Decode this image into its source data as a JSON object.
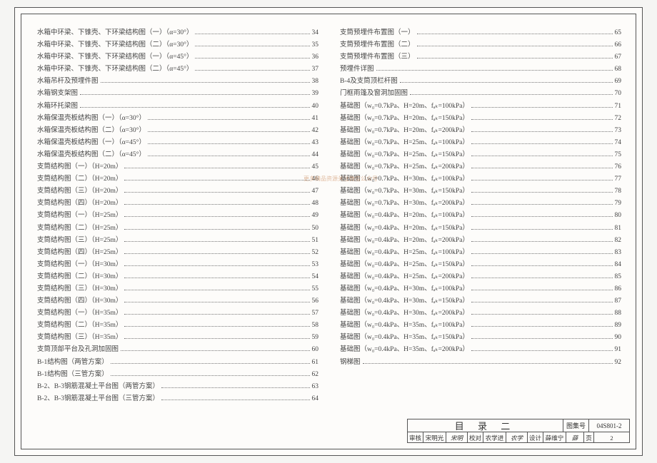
{
  "title_block": {
    "title": "目 录 二",
    "set_label": "图集号",
    "set_no": "04S801-2",
    "審核l": "审核",
    "審核n": "宋明光",
    "校对l": "校对",
    "校对n": "农学进",
    "设计l": "设计",
    "设计n": "薛维宁",
    "页l": "页",
    "页n": "2"
  },
  "left": [
    {
      "t": "水箱中环梁、下锥壳、下环梁结构图（一）（α=30°）",
      "p": "34"
    },
    {
      "t": "水箱中环梁、下锥壳、下环梁结构图（二）（α=30°）",
      "p": "35"
    },
    {
      "t": "水箱中环梁、下锥壳、下环梁结构图（一）（α=45°）",
      "p": "36"
    },
    {
      "t": "水箱中环梁、下锥壳、下环梁结构图（二）（α=45°）",
      "p": "37"
    },
    {
      "t": "水箱吊杆及预埋件图",
      "p": "38"
    },
    {
      "t": "水箱钢支架图",
      "p": "39"
    },
    {
      "t": "水箱环托梁图",
      "p": "40"
    },
    {
      "t": "水箱保温壳板结构图（一）（α=30°）",
      "p": "41"
    },
    {
      "t": "水箱保温壳板结构图（二）（α=30°）",
      "p": "42"
    },
    {
      "t": "水箱保温壳板结构图（一）（α=45°）",
      "p": "43"
    },
    {
      "t": "水箱保温壳板结构图（二）（α=45°）",
      "p": "44"
    },
    {
      "t": "支筒结构图（一）（H=20m）",
      "p": "45"
    },
    {
      "t": "支筒结构图（二）（H=20m）",
      "p": "46"
    },
    {
      "t": "支筒结构图（三）（H=20m）",
      "p": "47"
    },
    {
      "t": "支筒结构图（四）（H=20m）",
      "p": "48"
    },
    {
      "t": "支筒结构图（一）（H=25m）",
      "p": "49"
    },
    {
      "t": "支筒结构图（二）（H=25m）",
      "p": "50"
    },
    {
      "t": "支筒结构图（三）（H=25m）",
      "p": "51"
    },
    {
      "t": "支筒结构图（四）（H=25m）",
      "p": "52"
    },
    {
      "t": "支筒结构图（一）（H=30m）",
      "p": "53"
    },
    {
      "t": "支筒结构图（二）（H=30m）",
      "p": "54"
    },
    {
      "t": "支筒结构图（三）（H=30m）",
      "p": "55"
    },
    {
      "t": "支筒结构图（四）（H=30m）",
      "p": "56"
    },
    {
      "t": "支筒结构图（一）（H=35m）",
      "p": "57"
    },
    {
      "t": "支筒结构图（二）（H=35m）",
      "p": "58"
    },
    {
      "t": "支筒结构图（三）（H=35m）",
      "p": "59"
    },
    {
      "t": "支筒顶部平台及孔洞加固图",
      "p": "60"
    },
    {
      "t": "B-1结构图（两管方案）",
      "p": "61"
    },
    {
      "t": "B-1结构图（三管方案）",
      "p": "62"
    },
    {
      "t": "B-2、B-3钢筋混凝土平台图（两管方案）",
      "p": "63"
    },
    {
      "t": "B-2、B-3钢筋混凝土平台图（三管方案）",
      "p": "64"
    }
  ],
  "right": [
    {
      "t": "支筒预埋件布置图（一）",
      "p": "65"
    },
    {
      "t": "支筒预埋件布置图（二）",
      "p": "66"
    },
    {
      "t": "支筒预埋件布置图（三）",
      "p": "67"
    },
    {
      "t": "预埋件详图",
      "p": "68"
    },
    {
      "t": "B-4及支筒顶栏杆图",
      "p": "69"
    },
    {
      "t": "门框雨篷及窗洞加固图",
      "p": "70"
    },
    {
      "t": "基础图（w₀=0.7kPa、H=20m、fₐₖ=100kPa）",
      "p": "71"
    },
    {
      "t": "基础图（w₀=0.7kPa、H=20m、fₐₖ=150kPa）",
      "p": "72"
    },
    {
      "t": "基础图（w₀=0.7kPa、H=20m、fₐₖ=200kPa）",
      "p": "73"
    },
    {
      "t": "基础图（w₀=0.7kPa、H=25m、fₐₖ=100kPa）",
      "p": "74"
    },
    {
      "t": "基础图（w₀=0.7kPa、H=25m、fₐₖ=150kPa）",
      "p": "75"
    },
    {
      "t": "基础图（w₀=0.7kPa、H=25m、fₐₖ=200kPa）",
      "p": "76"
    },
    {
      "t": "基础图（w₀=0.7kPa、H=30m、fₐₖ=100kPa）",
      "p": "77"
    },
    {
      "t": "基础图（w₀=0.7kPa、H=30m、fₐₖ=150kPa）",
      "p": "78"
    },
    {
      "t": "基础图（w₀=0.7kPa、H=30m、fₐₖ=200kPa）",
      "p": "79"
    },
    {
      "t": "基础图（w₀=0.4kPa、H=20m、fₐₖ=100kPa）",
      "p": "80"
    },
    {
      "t": "基础图（w₀=0.4kPa、H=20m、fₐₖ=150kPa）",
      "p": "81"
    },
    {
      "t": "基础图（w₀=0.4kPa、H=20m、fₐₖ=200kPa）",
      "p": "82"
    },
    {
      "t": "基础图（w₀=0.4kPa、H=25m、fₐₖ=100kPa）",
      "p": "83"
    },
    {
      "t": "基础图（w₀=0.4kPa、H=25m、fₐₖ=150kPa）",
      "p": "84"
    },
    {
      "t": "基础图（w₀=0.4kPa、H=25m、fₐₖ=200kPa）",
      "p": "85"
    },
    {
      "t": "基础图（w₀=0.4kPa、H=30m、fₐₖ=100kPa）",
      "p": "86"
    },
    {
      "t": "基础图（w₀=0.4kPa、H=30m、fₐₖ=150kPa）",
      "p": "87"
    },
    {
      "t": "基础图（w₀=0.4kPa、H=30m、fₐₖ=200kPa）",
      "p": "88"
    },
    {
      "t": "基础图（w₀=0.4kPa、H=35m、fₐₖ=100kPa）",
      "p": "89"
    },
    {
      "t": "基础图（w₀=0.4kPa、H=35m、fₐₖ=150kPa）",
      "p": "90"
    },
    {
      "t": "基础图（w₀=0.4kPa、H=35m、fₐₖ=200kPa）",
      "p": "91"
    },
    {
      "t": "钢梯图",
      "p": "92"
    }
  ]
}
